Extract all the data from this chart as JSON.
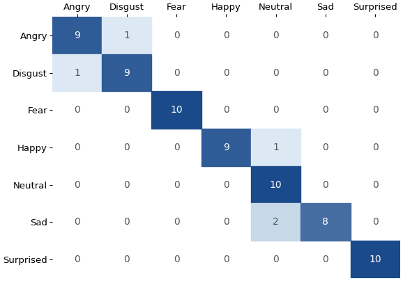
{
  "matrix": [
    [
      9,
      1,
      0,
      0,
      0,
      0,
      0
    ],
    [
      1,
      9,
      0,
      0,
      0,
      0,
      0
    ],
    [
      0,
      0,
      10,
      0,
      0,
      0,
      0
    ],
    [
      0,
      0,
      0,
      9,
      1,
      0,
      0
    ],
    [
      0,
      0,
      0,
      0,
      10,
      0,
      0
    ],
    [
      0,
      0,
      0,
      0,
      2,
      8,
      0
    ],
    [
      0,
      0,
      0,
      0,
      0,
      0,
      10
    ]
  ],
  "labels": [
    "Angry",
    "Disgust",
    "Fear",
    "Happy",
    "Neutral",
    "Sad",
    "Surprised"
  ],
  "cmap_colors": [
    "#dce9f5",
    "#1a4a8a"
  ],
  "text_color_dark": "#ffffff",
  "text_color_light": "#555555",
  "background_color": "#ffffff",
  "fontsize_ticks": 9.5,
  "fontsize_values": 10,
  "figsize": [
    5.78,
    4.04
  ],
  "dpi": 100,
  "threshold": 4
}
